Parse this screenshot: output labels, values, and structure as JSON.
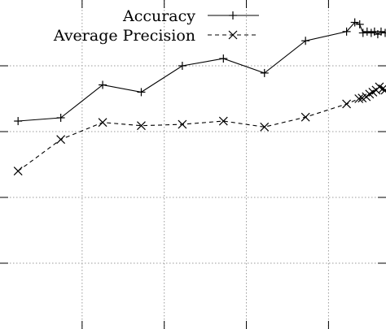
{
  "chart_data": {
    "type": "line",
    "title": "",
    "xlabel": "",
    "ylabel": "",
    "grid": true,
    "legend_position": "top-right",
    "x_major_ticks": [
      1,
      2,
      3,
      4
    ],
    "y_major_ticks": [
      0.5,
      1,
      1.5,
      2,
      2.5,
      3,
      3.5,
      4,
      4.5
    ],
    "xlim": [
      0,
      4.7
    ],
    "ylim": [
      0,
      5
    ],
    "series": [
      {
        "name": "Accuracy",
        "marker": "plus",
        "line_style": "solid",
        "x": [
          0.22,
          0.74,
          1.25,
          1.72,
          2.22,
          2.72,
          3.22,
          3.72,
          4.22,
          4.32,
          4.38,
          4.42,
          4.47,
          4.52,
          4.56,
          4.6,
          4.64,
          4.69
        ],
        "y": [
          3.16,
          3.21,
          3.71,
          3.6,
          4.0,
          4.11,
          3.89,
          4.38,
          4.52,
          4.66,
          4.63,
          4.5,
          4.52,
          4.5,
          4.52,
          4.48,
          4.52,
          4.5
        ]
      },
      {
        "name": "Average Precision",
        "marker": "cross",
        "line_style": "dashed",
        "x": [
          0.22,
          0.74,
          1.25,
          1.72,
          2.22,
          2.72,
          3.22,
          3.72,
          4.22,
          4.37,
          4.41,
          4.46,
          4.5,
          4.54,
          4.58,
          4.62,
          4.66,
          4.69
        ],
        "y": [
          2.4,
          2.88,
          3.14,
          3.09,
          3.11,
          3.16,
          3.07,
          3.22,
          3.42,
          3.5,
          3.51,
          3.53,
          3.57,
          3.6,
          3.63,
          3.68,
          3.65,
          3.63
        ]
      }
    ]
  }
}
